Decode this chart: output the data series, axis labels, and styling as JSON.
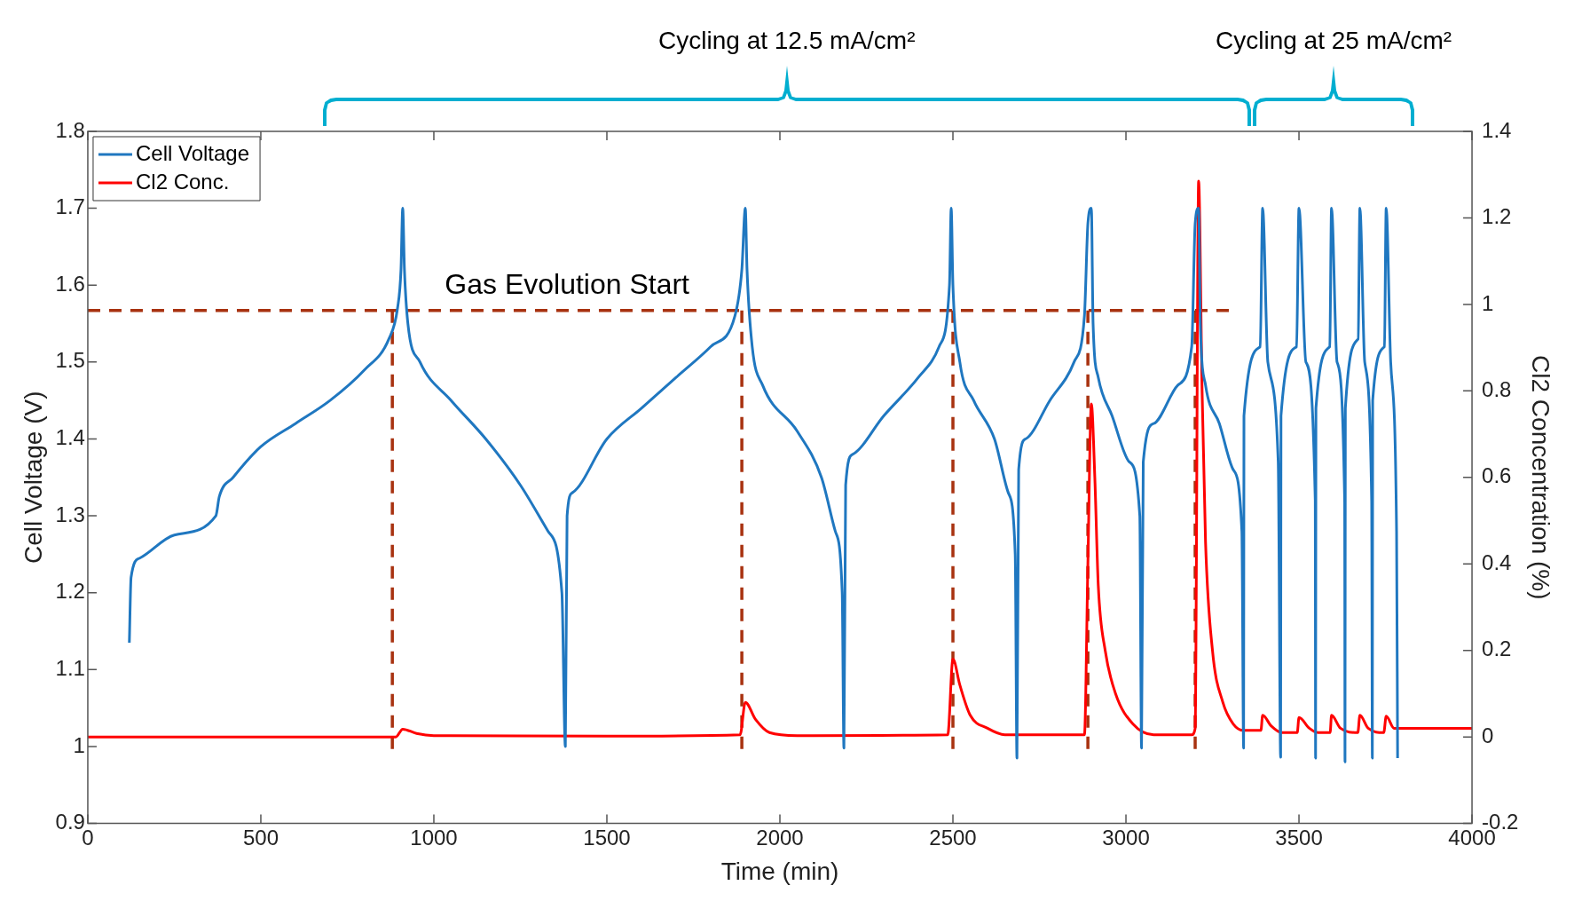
{
  "chart_data": {
    "type": "line",
    "xlabel": "Time (min)",
    "ylabel": "Cell Voltage (V)",
    "y2label": "Cl2 Concentration (%)",
    "xlim": [
      0,
      4000
    ],
    "xticks": [
      0,
      500,
      1000,
      1500,
      2000,
      2500,
      3000,
      3500,
      4000
    ],
    "ylim": [
      0.9,
      1.8
    ],
    "yticks": [
      0.9,
      1,
      1.1,
      1.2,
      1.3,
      1.4,
      1.5,
      1.6,
      1.7,
      1.8
    ],
    "y2lim": [
      -0.2,
      1.4
    ],
    "y2ticks": [
      -0.2,
      0,
      0.2,
      0.4,
      0.6,
      0.8,
      1,
      1.2,
      1.4
    ],
    "legend": "top left",
    "series": [
      {
        "name": "Cell Voltage",
        "color": "#1f77c0",
        "axis": "y",
        "x": [
          120,
          125,
          150,
          250,
          370,
          380,
          420,
          500,
          600,
          700,
          800,
          870,
          895,
          905,
          910,
          915,
          925,
          960,
          1050,
          1150,
          1250,
          1330,
          1370,
          1380,
          1385,
          1400,
          1500,
          1600,
          1700,
          1800,
          1870,
          1890,
          1900,
          1905,
          1920,
          1950,
          2050,
          2120,
          2160,
          2180,
          2185,
          2190,
          2210,
          2300,
          2400,
          2460,
          2490,
          2495,
          2500,
          2520,
          2560,
          2620,
          2660,
          2680,
          2685,
          2690,
          2710,
          2780,
          2850,
          2880,
          2890,
          2900,
          2905,
          2920,
          2960,
          3010,
          3040,
          3045,
          3050,
          3080,
          3150,
          3190,
          3200,
          3210,
          3215,
          3230,
          3270,
          3310,
          3335,
          3340,
          3341,
          3388,
          3395,
          3410,
          3440,
          3447,
          3448,
          3493,
          3500,
          3520,
          3547,
          3548,
          3549,
          3589,
          3594,
          3610,
          3632,
          3633,
          3634,
          3671,
          3676,
          3690,
          3710,
          3712,
          3713,
          3747,
          3752,
          3765,
          3782,
          3785
        ],
        "values": [
          1.135,
          1.22,
          1.245,
          1.275,
          1.3,
          1.325,
          1.35,
          1.39,
          1.42,
          1.45,
          1.49,
          1.53,
          1.57,
          1.62,
          1.7,
          1.62,
          1.55,
          1.5,
          1.45,
          1.4,
          1.34,
          1.28,
          1.2,
          1.0,
          1.3,
          1.33,
          1.4,
          1.44,
          1.48,
          1.52,
          1.56,
          1.62,
          1.7,
          1.62,
          1.52,
          1.47,
          1.41,
          1.35,
          1.28,
          1.2,
          0.998,
          1.34,
          1.38,
          1.43,
          1.48,
          1.52,
          1.6,
          1.7,
          1.6,
          1.5,
          1.45,
          1.4,
          1.33,
          1.25,
          0.985,
          1.36,
          1.4,
          1.45,
          1.5,
          1.56,
          1.68,
          1.7,
          1.55,
          1.48,
          1.43,
          1.37,
          1.3,
          0.998,
          1.37,
          1.42,
          1.47,
          1.52,
          1.68,
          1.7,
          1.55,
          1.47,
          1.42,
          1.36,
          1.28,
          0.998,
          1.43,
          1.52,
          1.7,
          1.5,
          1.37,
          0.986,
          1.43,
          1.52,
          1.7,
          1.5,
          1.32,
          0.985,
          1.44,
          1.52,
          1.7,
          1.5,
          1.32,
          0.98,
          1.44,
          1.53,
          1.7,
          1.5,
          1.32,
          0.985,
          1.45,
          1.52,
          1.7,
          1.5,
          1.28,
          0.985
        ]
      },
      {
        "name": "Cl2 Conc.",
        "color": "#ff0000",
        "axis": "y2",
        "x": [
          0,
          500,
          890,
          910,
          950,
          1000,
          1500,
          1885,
          1900,
          1930,
          1970,
          2050,
          2485,
          2500,
          2520,
          2550,
          2600,
          2650,
          2880,
          2890,
          2900,
          2910,
          2920,
          2940,
          2970,
          3020,
          3080,
          3190,
          3200,
          3210,
          3220,
          3230,
          3250,
          3280,
          3310,
          3340,
          3390,
          3395,
          3420,
          3450,
          3495,
          3500,
          3530,
          3555,
          3590,
          3594,
          3620,
          3670,
          3676,
          3700,
          3745,
          3752,
          3775,
          3850,
          4000
        ],
        "values": [
          0,
          0,
          0,
          0.018,
          0.008,
          0.003,
          0.002,
          0.005,
          0.08,
          0.04,
          0.01,
          0.003,
          0.005,
          0.18,
          0.12,
          0.05,
          0.02,
          0.005,
          0.005,
          0.4,
          0.77,
          0.6,
          0.35,
          0.2,
          0.1,
          0.03,
          0.005,
          0.005,
          0.02,
          1.285,
          0.8,
          0.45,
          0.2,
          0.08,
          0.03,
          0.015,
          0.015,
          0.05,
          0.025,
          0.01,
          0.01,
          0.045,
          0.02,
          0.01,
          0.01,
          0.05,
          0.02,
          0.01,
          0.05,
          0.02,
          0.01,
          0.048,
          0.02,
          0.02,
          0.02
        ]
      }
    ],
    "ref_lines": [
      {
        "axis": "y",
        "value": 1.567,
        "label": "Gas Evolution Start",
        "color": "#a83210",
        "line_style": "dashed"
      },
      {
        "axis": "x",
        "value": 880,
        "color": "#a83210",
        "line_style": "dashed"
      },
      {
        "axis": "x",
        "value": 1890,
        "color": "#a83210",
        "line_style": "dashed"
      },
      {
        "axis": "x",
        "value": 2500,
        "color": "#a83210",
        "line_style": "dashed"
      },
      {
        "axis": "x",
        "value": 2890,
        "color": "#a83210",
        "line_style": "dashed"
      },
      {
        "axis": "x",
        "value": 3200,
        "color": "#a83210",
        "line_style": "dashed"
      }
    ],
    "annotations": [
      "Cycling at 12.5 mA/cm²",
      "Cycling at 25 mA/cm²"
    ]
  }
}
